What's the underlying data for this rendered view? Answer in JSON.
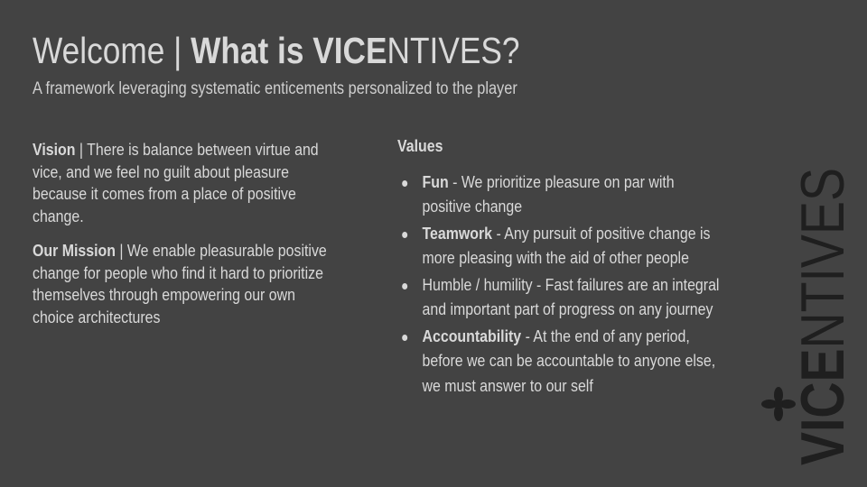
{
  "slide": {
    "title": {
      "prefix": "Welcome | ",
      "bold": "What is VICE",
      "rest": "NTIVES?"
    },
    "subtitle": "A framework leveraging systematic enticements personalized to the player",
    "vision": {
      "label": "Vision",
      "separator": " | ",
      "text": "There is balance between virtue and vice, and we feel no guilt about pleasure because it comes from a place of positive change."
    },
    "mission": {
      "label": "Our Mission",
      "separator": " | ",
      "text": "We enable  pleasurable positive change  for people who find it hard to prioritize themselves through empowering our own choice architectures"
    },
    "values": {
      "heading": "Values",
      "items": [
        {
          "name": "Fun",
          "text": " - We prioritize pleasure on par with positive change"
        },
        {
          "name": "Teamwork",
          "text": " - Any pursuit of positive change is more pleasing with the aid of other people"
        },
        {
          "name": "",
          "text": "Humble / humility  - Fast failures are an integral and important part of progress on any journey"
        },
        {
          "name": "Accountability",
          "text": " - At the end of any period, before we can be accountable to anyone else, we must answer to our self"
        }
      ]
    },
    "logo": {
      "bold": "VICE",
      "light": "NTIVES",
      "color": "#1f1f1f"
    }
  }
}
